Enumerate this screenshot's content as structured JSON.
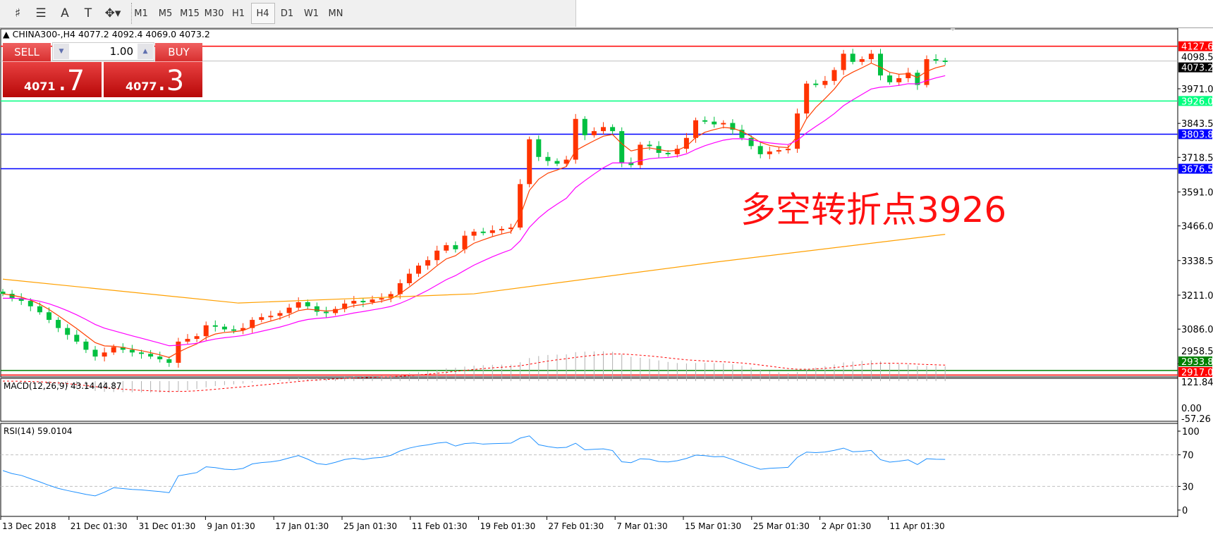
{
  "toolbar": {
    "tools": [
      {
        "name": "fibo-expansion-icon",
        "glyph": "♯"
      },
      {
        "name": "fibo-fan-icon",
        "glyph": "☰"
      },
      {
        "name": "text-icon",
        "glyph": "A"
      },
      {
        "name": "text-label-icon",
        "glyph": "T"
      },
      {
        "name": "arrows-icon",
        "glyph": "✥▾"
      }
    ],
    "timeframes": [
      "M1",
      "M5",
      "M15",
      "M30",
      "H1",
      "H4",
      "D1",
      "W1",
      "MN"
    ],
    "selected": "H4"
  },
  "chart_title": "CHINA300-,H4  4077.2 4092.4 4069.0 4073.2",
  "trade": {
    "sell": "SELL",
    "buy": "BUY",
    "lot": "1.00",
    "sell_small": "4071",
    "sell_big": ".7",
    "buy_small": "4077",
    "buy_big": ".3"
  },
  "annotation": "多空转折点3926",
  "colors": {
    "bull": "#ff3300",
    "bear": "#00c040",
    "ma_fast": "#ff4000",
    "ma_mid": "#ff00ff",
    "ma_slow": "#ffa000",
    "rsi": "#1e90ff",
    "macd_signal": "#ff0000"
  },
  "chart_data": {
    "type": "candlestick",
    "symbol": "CHINA300-",
    "timeframe": "H4",
    "closes": [
      3216,
      3200,
      3190,
      3170,
      3148,
      3120,
      3090,
      3065,
      3040,
      3010,
      2985,
      3000,
      3020,
      3010,
      3000,
      2995,
      2985,
      2975,
      2962,
      3040,
      3050,
      3060,
      3100,
      3095,
      3085,
      3082,
      3090,
      3120,
      3130,
      3135,
      3145,
      3165,
      3185,
      3170,
      3150,
      3145,
      3160,
      3180,
      3190,
      3185,
      3195,
      3200,
      3215,
      3255,
      3290,
      3320,
      3340,
      3375,
      3395,
      3380,
      3430,
      3445,
      3440,
      3450,
      3455,
      3460,
      3620,
      3785,
      3720,
      3705,
      3695,
      3710,
      3860,
      3800,
      3815,
      3830,
      3815,
      3700,
      3690,
      3765,
      3760,
      3735,
      3730,
      3750,
      3790,
      3855,
      3850,
      3840,
      3845,
      3820,
      3790,
      3760,
      3730,
      3740,
      3745,
      3750,
      3880,
      3990,
      3985,
      4000,
      4040,
      4100,
      4070,
      4080,
      4100,
      4020,
      3995,
      4010,
      4030,
      3985,
      4080,
      4075,
      4073.2
    ],
    "slow_ma": [
      3270,
      3182,
      3216,
      3330,
      3435
    ],
    "price_ticks": [
      "3971.0",
      "3843.5",
      "3718.5",
      "3591.0",
      "3466.0",
      "3338.5",
      "3211.0",
      "3086.0",
      "2958.5"
    ],
    "levels": [
      {
        "value": "4127.6",
        "color": "#ff0000",
        "text": "#fff"
      },
      {
        "value": "4098.5",
        "color": null,
        "text": "#000"
      },
      {
        "value": "4073.2",
        "color": "#000000",
        "text": "#fff",
        "line": "#c0c0c0"
      },
      {
        "value": "3926.0",
        "color": "#00ff80",
        "text": "#fff"
      },
      {
        "value": "3803.8",
        "color": "#0000ff",
        "text": "#fff"
      },
      {
        "value": "3676.5",
        "color": "#0000ff",
        "text": "#fff"
      },
      {
        "value": "2933.8",
        "color": "#008000",
        "text": "#fff"
      },
      {
        "value": "2917.0",
        "color": "#ff0000",
        "text": "#fff"
      }
    ],
    "x_ticks": [
      "13 Dec 2018",
      "21 Dec 01:30",
      "31 Dec 01:30",
      "9 Jan 01:30",
      "17 Jan 01:30",
      "25 Jan 01:30",
      "11 Feb 01:30",
      "19 Feb 01:30",
      "27 Feb 01:30",
      "7 Mar 01:30",
      "15 Mar 01:30",
      "25 Mar 01:30",
      "2 Apr 01:30",
      "11 Apr 01:30"
    ],
    "macd": {
      "label": "MACD(12,26,9) 43.14 44.87",
      "ticks": [
        "121.84",
        "0.00",
        "-57.26"
      ]
    },
    "rsi": {
      "label": "RSI(14) 59.0104",
      "ticks": [
        "100",
        "70",
        "30",
        "0"
      ],
      "levels": [
        70,
        30
      ]
    }
  }
}
